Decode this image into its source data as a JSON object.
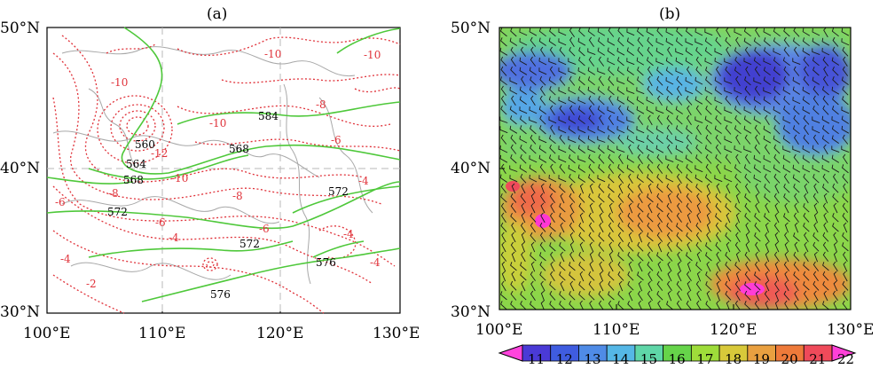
{
  "panel_a": {
    "title": "(a)",
    "y_ticks": [
      "50°N",
      "40°N",
      "30°N"
    ],
    "x_ticks": [
      "100°E",
      "110°E",
      "120°E",
      "130°E"
    ],
    "green_labels": [
      "560",
      "564",
      "568",
      "572",
      "568",
      "584",
      "572",
      "572",
      "576",
      "576"
    ],
    "red_labels": [
      "-10",
      "-10",
      "-10",
      "-10",
      "-12",
      "-10",
      "-8",
      "-8",
      "-6",
      "-6",
      "-8",
      "-6",
      "-4",
      "-4",
      "-4",
      "-4",
      "-2",
      "-6",
      "-4"
    ]
  },
  "panel_b": {
    "title": "(b)",
    "y_ticks": [
      "50°N",
      "40°N",
      "30°N"
    ],
    "x_ticks": [
      "100°E",
      "110°E",
      "120°E",
      "130°E"
    ],
    "colorbar": {
      "ticks": [
        "11",
        "12",
        "13",
        "14",
        "15",
        "16",
        "17",
        "18",
        "19",
        "20",
        "21",
        "22"
      ],
      "colors": [
        "#ff44dd",
        "#4a3ad6",
        "#3f5ce0",
        "#4f8be6",
        "#55b7e6",
        "#5fd6a8",
        "#66d44a",
        "#9edc3a",
        "#d8c93a",
        "#e9a040",
        "#ee7a3a",
        "#ef4a5a",
        "#ff40d8"
      ]
    }
  }
}
